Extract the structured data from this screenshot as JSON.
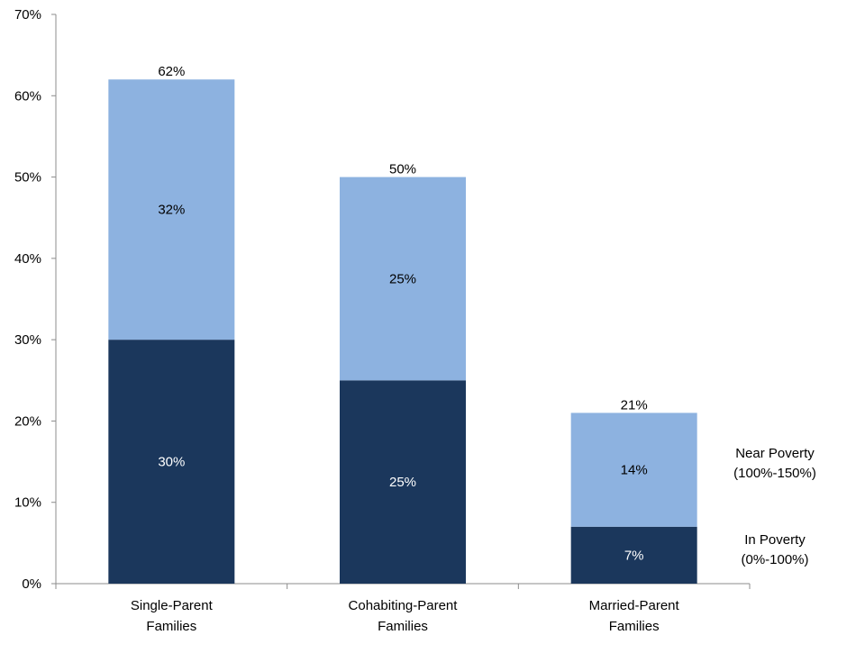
{
  "chart_data": {
    "type": "bar",
    "stacked": true,
    "categories": [
      [
        "Single-Parent",
        "Families"
      ],
      [
        "Cohabiting-Parent",
        "Families"
      ],
      [
        "Married-Parent",
        "Families"
      ]
    ],
    "series": [
      {
        "name": [
          "In Poverty",
          "(0%-100%)"
        ],
        "values": [
          30,
          25,
          7
        ],
        "labels": [
          "30%",
          "25%",
          "7%"
        ],
        "color": "#1b375c",
        "label_color": "#ffffff"
      },
      {
        "name": [
          "Near Poverty",
          "(100%-150%)"
        ],
        "values": [
          32,
          25,
          14
        ],
        "labels": [
          "32%",
          "25%",
          "14%"
        ],
        "color": "#8db2e0",
        "label_color": "#000000"
      }
    ],
    "totals": [
      62,
      50,
      21
    ],
    "total_labels": [
      "62%",
      "50%",
      "21%"
    ],
    "ylim": [
      0,
      70
    ],
    "yticks": [
      "0%",
      "10%",
      "20%",
      "30%",
      "40%",
      "50%",
      "60%",
      "70%"
    ],
    "grid": false,
    "legend_position": "right"
  }
}
